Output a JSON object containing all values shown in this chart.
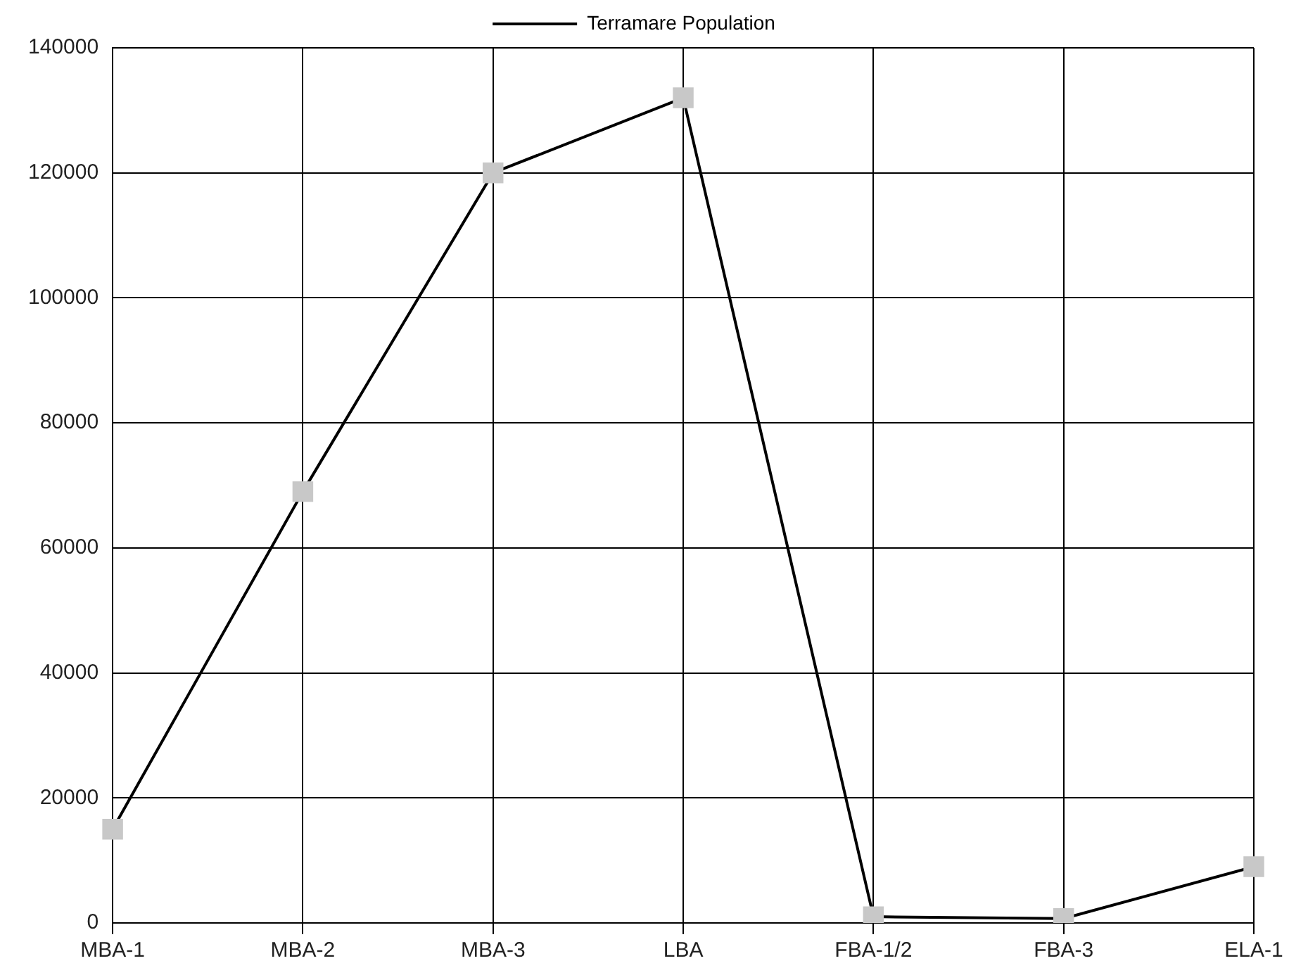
{
  "chart_data": {
    "type": "line",
    "categories": [
      "MBA-1",
      "MBA-2",
      "MBA-3",
      "LBA",
      "FBA-1/2",
      "FBA-3",
      "ELA-1"
    ],
    "series": [
      {
        "name": "Terramare Population",
        "color": "#000000",
        "colors": [
          "#c8c8c8",
          "#c8c8c8",
          "#c8c8c8",
          "#c8c8c8",
          "#c8c8c8",
          "#c8c8c8",
          "#c8c8c8"
        ],
        "values": [
          15000,
          69000,
          120000,
          132000,
          1000,
          700,
          9000
        ]
      }
    ],
    "ylim": [
      0,
      140000
    ],
    "yticks": [
      0,
      20000,
      40000,
      60000,
      80000,
      100000,
      120000,
      140000
    ],
    "grid": true,
    "legend": "top",
    "marker": "square",
    "line_style": "solid"
  }
}
